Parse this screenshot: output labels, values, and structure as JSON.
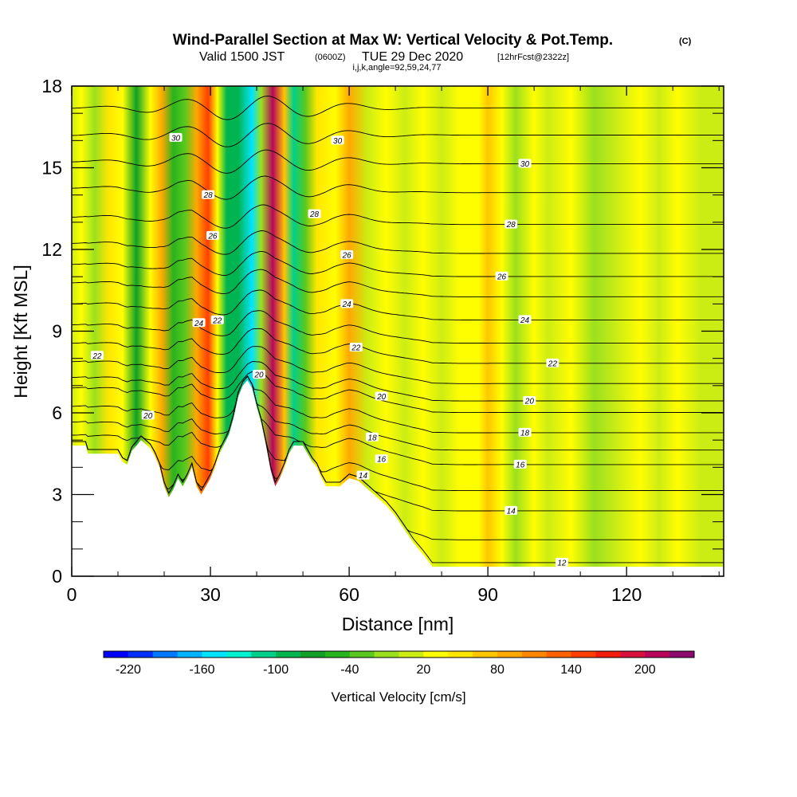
{
  "header": {
    "title": "Wind-Parallel Section at Max W: Vertical Velocity & Pot.Temp.",
    "title_sup": "(C)",
    "valid_prefix": "Valid 1500 JST",
    "valid_utc": "(0600Z)",
    "valid_date": "TUE 29 Dec 2020",
    "forecast": "[12hrFcst@2322z]",
    "indices": "i,j,k,angle=92,59,24,77"
  },
  "chart_data": {
    "type": "heatmap",
    "xlabel": "Distance [nm]",
    "ylabel": "Height [Kft MSL]",
    "xlim": [
      0,
      141
    ],
    "ylim": [
      0,
      18
    ],
    "xticks": [
      0,
      30,
      60,
      90,
      120
    ],
    "yticks": [
      0,
      3,
      6,
      9,
      12,
      15,
      18
    ],
    "colorbar": {
      "label": "Vertical Velocity [cm/s]",
      "tick_labels": [
        "-220",
        "-160",
        "-100",
        "-40",
        "20",
        "80",
        "140",
        "200"
      ],
      "tick_values": [
        -220,
        -160,
        -100,
        -40,
        20,
        80,
        140,
        200
      ],
      "min": -240,
      "max": 240,
      "step": 20,
      "colors": [
        "#0000ff",
        "#0030ff",
        "#0078ff",
        "#00b4ff",
        "#00e4ff",
        "#00f0d2",
        "#00d08a",
        "#00b450",
        "#10a028",
        "#28b41e",
        "#5ac81e",
        "#9be01e",
        "#cced14",
        "#fffe00",
        "#ffe600",
        "#ffc600",
        "#ffa800",
        "#ff8600",
        "#ff6200",
        "#ff3e00",
        "#f31c0c",
        "#d8103e",
        "#b8065a",
        "#8c0a6e"
      ]
    },
    "terrain_height_kft": [
      [
        0,
        4.8
      ],
      [
        3,
        4.8
      ],
      [
        3.5,
        4.5
      ],
      [
        10,
        4.5
      ],
      [
        11,
        4.2
      ],
      [
        12,
        4.1
      ],
      [
        13,
        4.6
      ],
      [
        15,
        5.0
      ],
      [
        17,
        4.7
      ],
      [
        18,
        4.4
      ],
      [
        19,
        4.0
      ],
      [
        20,
        3.3
      ],
      [
        21,
        2.9
      ],
      [
        22,
        3.2
      ],
      [
        23,
        3.6
      ],
      [
        24,
        3.3
      ],
      [
        25,
        3.6
      ],
      [
        26,
        4.0
      ],
      [
        27,
        3.3
      ],
      [
        28,
        3.0
      ],
      [
        29,
        3.3
      ],
      [
        30,
        3.6
      ],
      [
        31,
        4.0
      ],
      [
        32,
        4.5
      ],
      [
        34,
        5.2
      ],
      [
        35,
        5.8
      ],
      [
        36,
        6.6
      ],
      [
        37,
        7.0
      ],
      [
        38,
        7.2
      ],
      [
        39,
        6.9
      ],
      [
        40,
        6.2
      ],
      [
        41,
        5.6
      ],
      [
        42,
        4.8
      ],
      [
        43,
        3.9
      ],
      [
        44,
        3.3
      ],
      [
        45,
        3.6
      ],
      [
        46,
        4.0
      ],
      [
        47,
        4.5
      ],
      [
        48,
        4.8
      ],
      [
        50,
        4.8
      ],
      [
        51,
        4.5
      ],
      [
        52,
        4.2
      ],
      [
        53,
        4.0
      ],
      [
        54,
        3.6
      ],
      [
        55,
        3.3
      ],
      [
        58,
        3.3
      ],
      [
        60,
        3.6
      ],
      [
        62,
        3.5
      ],
      [
        64,
        3.2
      ],
      [
        66,
        2.9
      ],
      [
        68,
        2.6
      ],
      [
        70,
        2.2
      ],
      [
        72,
        1.7
      ],
      [
        74,
        1.2
      ],
      [
        76,
        0.8
      ],
      [
        78,
        0.35
      ],
      [
        141,
        0.35
      ]
    ],
    "vertical_velocity_bands_cm_s": [
      {
        "x": 0,
        "w": 0
      },
      {
        "x": 2,
        "w": 20
      },
      {
        "x": 5,
        "w": -20
      },
      {
        "x": 8,
        "w": 40
      },
      {
        "x": 11,
        "w": 30
      },
      {
        "x": 14,
        "w": -70
      },
      {
        "x": 17,
        "w": 20
      },
      {
        "x": 19.5,
        "w": 90
      },
      {
        "x": 22,
        "w": -60
      },
      {
        "x": 24.5,
        "w": -30
      },
      {
        "x": 27,
        "w": 80
      },
      {
        "x": 29.5,
        "w": 150
      },
      {
        "x": 31.5,
        "w": 30
      },
      {
        "x": 33.5,
        "w": -100
      },
      {
        "x": 36,
        "w": -90
      },
      {
        "x": 39,
        "w": -160
      },
      {
        "x": 41,
        "w": -20
      },
      {
        "x": 43.5,
        "w": 200
      },
      {
        "x": 46,
        "w": 60
      },
      {
        "x": 48,
        "w": -110
      },
      {
        "x": 50.5,
        "w": -40
      },
      {
        "x": 53,
        "w": 40
      },
      {
        "x": 57,
        "w": 30
      },
      {
        "x": 60,
        "w": 80
      },
      {
        "x": 64,
        "w": 0
      },
      {
        "x": 68,
        "w": 20
      },
      {
        "x": 72,
        "w": 0
      },
      {
        "x": 76,
        "w": 20
      },
      {
        "x": 80,
        "w": 0
      },
      {
        "x": 84,
        "w": 20
      },
      {
        "x": 88,
        "w": 30
      },
      {
        "x": 90,
        "w": 60
      },
      {
        "x": 93,
        "w": 20
      },
      {
        "x": 96,
        "w": -20
      },
      {
        "x": 100,
        "w": 20
      },
      {
        "x": 103,
        "w": 0
      },
      {
        "x": 108,
        "w": 20
      },
      {
        "x": 113,
        "w": -10
      },
      {
        "x": 118,
        "w": 0
      },
      {
        "x": 123,
        "w": 30
      },
      {
        "x": 127,
        "w": 0
      },
      {
        "x": 131,
        "w": 20
      },
      {
        "x": 136,
        "w": 10
      },
      {
        "x": 141,
        "w": 0
      }
    ],
    "potential_temperature_contours_C": [
      {
        "value": 12,
        "label": "12",
        "base": 0.0,
        "label_x": 106
      },
      {
        "value": 13,
        "label": "",
        "base": 2.2
      },
      {
        "value": 14,
        "label": "14",
        "base": 3.2,
        "label_x": 95
      },
      {
        "value": 15,
        "label": "",
        "base": 3.9
      },
      {
        "value": 16,
        "label": "16",
        "base": 4.8,
        "label_x": 97
      },
      {
        "value": 17,
        "label": "",
        "base": 5.3
      },
      {
        "value": 18,
        "label": "18",
        "base": 5.9,
        "label_x": 98
      },
      {
        "value": 19,
        "label": "",
        "base": 6.6
      },
      {
        "value": 20,
        "label": "20",
        "base": 7.0,
        "label_x": 99
      },
      {
        "value": 21,
        "label": "",
        "base": 7.6
      },
      {
        "value": 22,
        "label": "22",
        "base": 8.3,
        "label_x": 104
      },
      {
        "value": 23,
        "label": "",
        "base": 9.0
      },
      {
        "value": 24,
        "label": "24",
        "base": 9.8,
        "label_x": 98
      },
      {
        "value": 25,
        "label": "",
        "base": 10.6
      },
      {
        "value": 26,
        "label": "26",
        "base": 11.3,
        "label_x": 93
      },
      {
        "value": 27,
        "label": "",
        "base": 12.1
      },
      {
        "value": 28,
        "label": "28",
        "base": 13.1,
        "label_x": 95
      },
      {
        "value": 29,
        "label": "",
        "base": 14.2
      },
      {
        "value": 30,
        "label": "30",
        "base": 15.2,
        "label_x": 98
      },
      {
        "value": 31,
        "label": "",
        "base": 16.2
      },
      {
        "value": 32,
        "label": "",
        "base": 17.2
      }
    ],
    "extra_contour_labels": [
      {
        "label": "30",
        "x": 22.5,
        "y": 16.1
      },
      {
        "label": "30",
        "x": 57.5,
        "y": 16.0
      },
      {
        "label": "28",
        "x": 29.5,
        "y": 14.0
      },
      {
        "label": "28",
        "x": 52.5,
        "y": 13.3
      },
      {
        "label": "26",
        "x": 30.5,
        "y": 12.5
      },
      {
        "label": "26",
        "x": 59.5,
        "y": 11.8
      },
      {
        "label": "24",
        "x": 27.5,
        "y": 9.3
      },
      {
        "label": "24",
        "x": 59.5,
        "y": 10.0
      },
      {
        "label": "22",
        "x": 31.5,
        "y": 9.4
      },
      {
        "label": "22",
        "x": 61.5,
        "y": 8.4
      },
      {
        "label": "22",
        "x": 5.5,
        "y": 8.1
      },
      {
        "label": "20",
        "x": 40.5,
        "y": 7.4
      },
      {
        "label": "20",
        "x": 16.5,
        "y": 5.9
      },
      {
        "label": "20",
        "x": 67,
        "y": 6.6
      },
      {
        "label": "18",
        "x": 65,
        "y": 5.1
      },
      {
        "label": "16",
        "x": 67,
        "y": 4.3
      },
      {
        "label": "14",
        "x": 63,
        "y": 3.7
      }
    ]
  }
}
